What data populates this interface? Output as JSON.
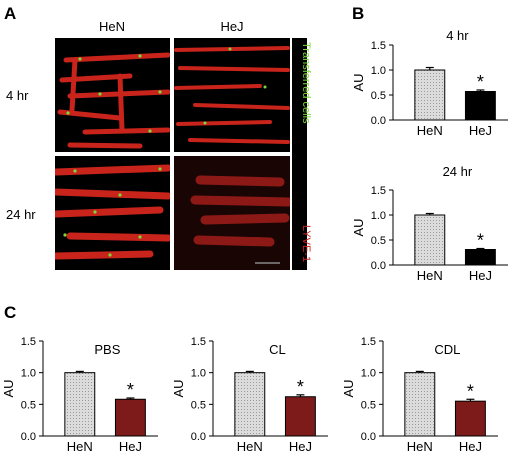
{
  "panel_labels": {
    "a": "A",
    "b": "B",
    "c": "C"
  },
  "micrographs": {
    "columns": [
      "HeN",
      "HeJ"
    ],
    "rows": [
      "4 hr",
      "24 hr"
    ],
    "stain_labels": {
      "cells": "Transferred cells",
      "lyve": "LYVE-1"
    },
    "colors": {
      "vessel": "#c8241c",
      "cells": "#7dd83a",
      "background": "#000000"
    }
  },
  "colors": {
    "hen_bar": "#c8c8c8",
    "hej_black": "#000000",
    "hej_red": "#7d1a1a"
  },
  "significance_marker": "*",
  "chart_data": [
    {
      "panel": "B",
      "type": "bar",
      "title": "4 hr",
      "ylabel": "AU",
      "ylim": [
        0,
        1.5
      ],
      "yticks": [
        "0.0",
        "0.5",
        "1.0",
        "1.5"
      ],
      "categories": [
        "HeN",
        "HeJ"
      ],
      "values": [
        1.0,
        0.57
      ],
      "errors": [
        0.05,
        0.03
      ],
      "bar_colors": [
        "#c8c8c8",
        "#000000"
      ],
      "significant": [
        false,
        true
      ]
    },
    {
      "panel": "B",
      "type": "bar",
      "title": "24 hr",
      "ylabel": "AU",
      "ylim": [
        0,
        1.5
      ],
      "yticks": [
        "0.0",
        "0.5",
        "1.0",
        "1.5"
      ],
      "categories": [
        "HeN",
        "HeJ"
      ],
      "values": [
        1.0,
        0.31
      ],
      "errors": [
        0.03,
        0.02
      ],
      "bar_colors": [
        "#c8c8c8",
        "#000000"
      ],
      "significant": [
        false,
        true
      ]
    },
    {
      "panel": "C",
      "type": "bar",
      "title": "PBS",
      "ylabel": "AU",
      "ylim": [
        0,
        1.5
      ],
      "yticks": [
        "0.0",
        "0.5",
        "1.0",
        "1.5"
      ],
      "categories": [
        "HeN",
        "HeJ"
      ],
      "values": [
        1.0,
        0.58
      ],
      "errors": [
        0.02,
        0.02
      ],
      "bar_colors": [
        "#c8c8c8",
        "#7d1a1a"
      ],
      "significant": [
        false,
        true
      ]
    },
    {
      "panel": "C",
      "type": "bar",
      "title": "CL",
      "ylabel": "AU",
      "ylim": [
        0,
        1.5
      ],
      "yticks": [
        "0.0",
        "0.5",
        "1.0",
        "1.5"
      ],
      "categories": [
        "HeN",
        "HeJ"
      ],
      "values": [
        1.0,
        0.62
      ],
      "errors": [
        0.02,
        0.03
      ],
      "bar_colors": [
        "#c8c8c8",
        "#7d1a1a"
      ],
      "significant": [
        false,
        true
      ]
    },
    {
      "panel": "C",
      "type": "bar",
      "title": "CDL",
      "ylabel": "AU",
      "ylim": [
        0,
        1.5
      ],
      "yticks": [
        "0.0",
        "0.5",
        "1.0",
        "1.5"
      ],
      "categories": [
        "HeN",
        "HeJ"
      ],
      "values": [
        1.0,
        0.55
      ],
      "errors": [
        0.02,
        0.03
      ],
      "bar_colors": [
        "#c8c8c8",
        "#7d1a1a"
      ],
      "significant": [
        false,
        true
      ]
    }
  ]
}
